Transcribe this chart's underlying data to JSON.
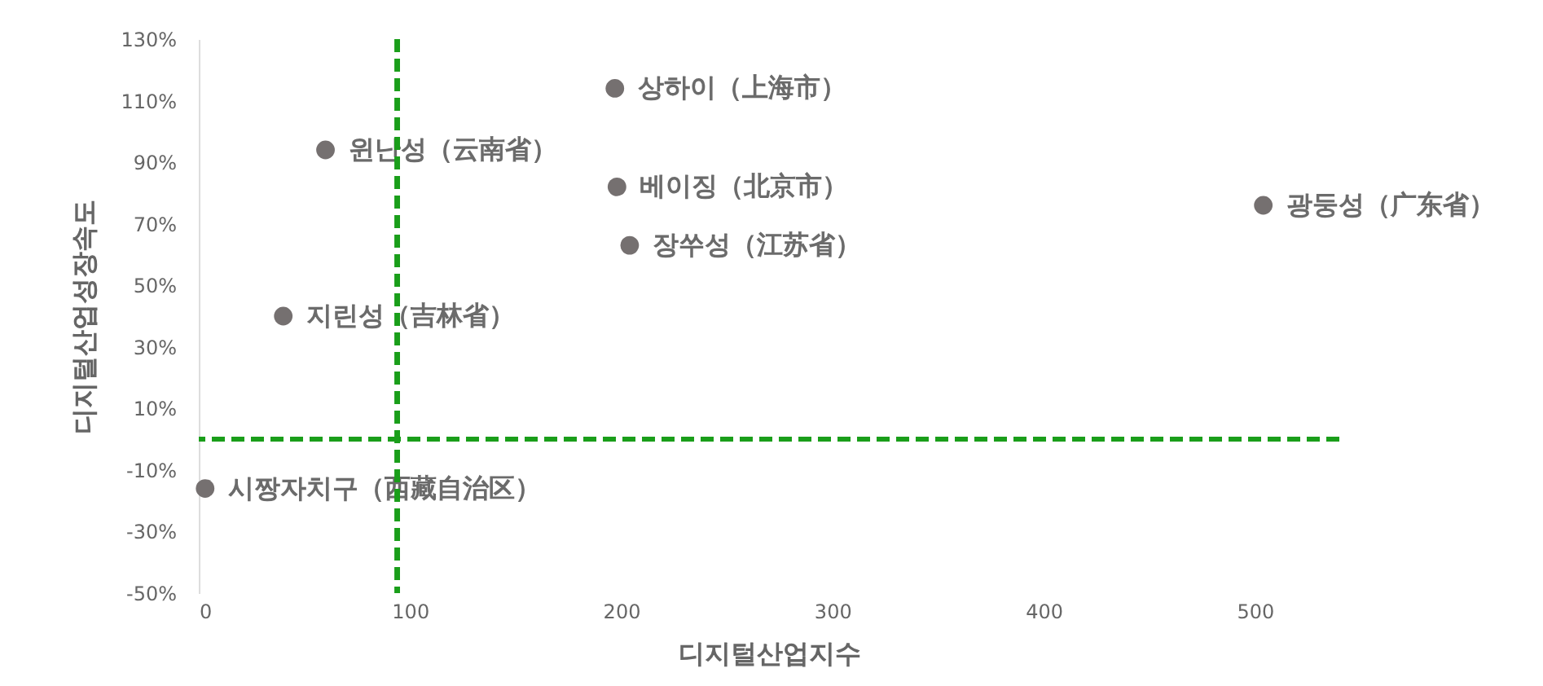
{
  "chart_data": {
    "type": "scatter",
    "xlabel": "디지털산업지수",
    "ylabel": "디지털산업성장속도",
    "xlim": [
      0,
      540
    ],
    "xticks": [
      0,
      100,
      200,
      300,
      400,
      500
    ],
    "ylim": [
      -50,
      130
    ],
    "yticks": [
      {
        "value": 130,
        "label": "130%"
      },
      {
        "value": 110,
        "label": "110%"
      },
      {
        "value": 90,
        "label": "90%"
      },
      {
        "value": 70,
        "label": "70%"
      },
      {
        "value": 50,
        "label": "50%"
      },
      {
        "value": 30,
        "label": "30%"
      },
      {
        "value": 10,
        "label": "10%"
      },
      {
        "value": -10,
        "label": "-10%"
      },
      {
        "value": -30,
        "label": "-30%"
      },
      {
        "value": -50,
        "label": "-50%"
      }
    ],
    "grid": false,
    "legend": false,
    "marker": "circle",
    "series": [
      {
        "name": "상하이（上海市）",
        "color": "#757070",
        "x": [
          197
        ],
        "values": [
          114
        ]
      },
      {
        "name": "윈난성（云南省）",
        "color": "#757070",
        "x": [
          60
        ],
        "values": [
          94
        ]
      },
      {
        "name": "베이징（北京市）",
        "color": "#757070",
        "x": [
          198
        ],
        "values": [
          82
        ]
      },
      {
        "name": "장쑤성（江苏省）",
        "color": "#757070",
        "x": [
          204
        ],
        "values": [
          63
        ]
      },
      {
        "name": "광둥성（广东省）",
        "color": "#757070",
        "x": [
          504
        ],
        "values": [
          76
        ]
      },
      {
        "name": "지린성（吉林省）",
        "color": "#757070",
        "x": [
          40
        ],
        "values": [
          40
        ]
      },
      {
        "name": "시짱자치구（西藏自治区）",
        "color": "#757070",
        "x": [
          3
        ],
        "values": [
          -16
        ]
      }
    ],
    "ref_lines": [
      {
        "axis": "x",
        "value": 94,
        "color": "#1a9e1a",
        "line_style": "dashed"
      },
      {
        "axis": "y",
        "value": 0,
        "color": "#1a9e1a",
        "line_style": "dashed"
      }
    ]
  }
}
